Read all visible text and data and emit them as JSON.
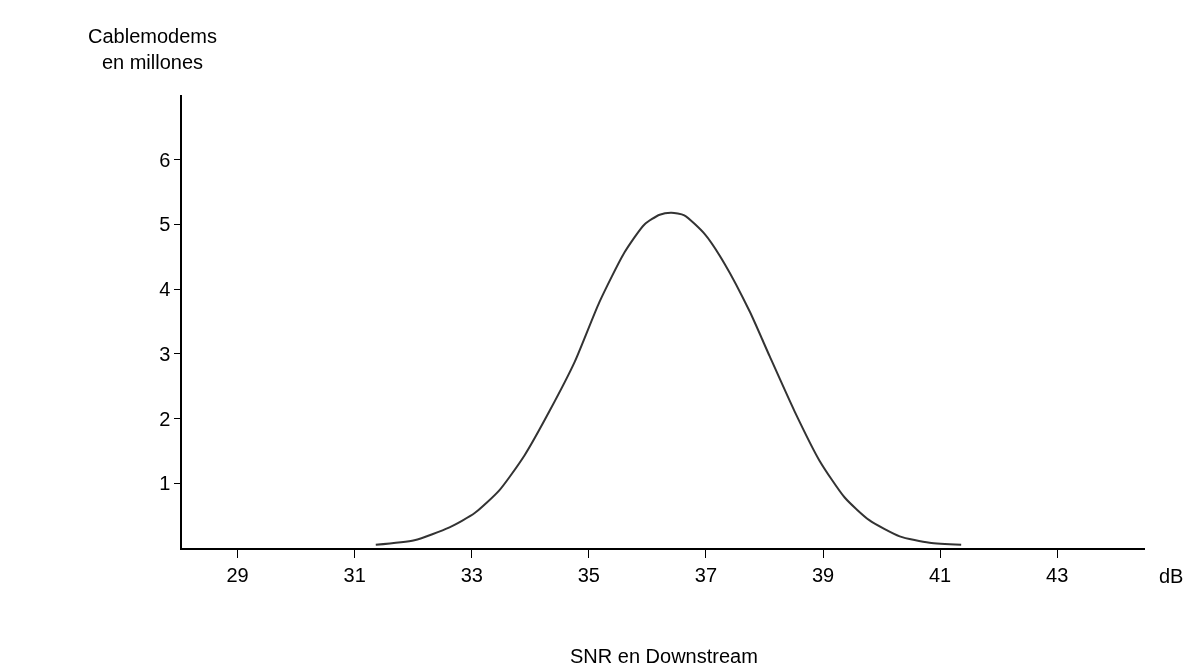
{
  "chart_data": {
    "type": "line",
    "xlabel": "SNR en Downstream",
    "ylabel": "Cablemodems\nen millones",
    "annotations": [
      "dB"
    ],
    "x": [
      31.36,
      32.02,
      32.62,
      33.05,
      33.47,
      33.9,
      34.33,
      34.76,
      35.18,
      35.61,
      35.95,
      36.21,
      36.41,
      36.63,
      36.98,
      37.32,
      37.75,
      38.09,
      38.51,
      38.94,
      39.37,
      39.79,
      40.31,
      40.82,
      41.36
    ],
    "series": [
      {
        "color": "#333333",
        "values": [
          0.05,
          0.12,
          0.32,
          0.54,
          0.89,
          1.43,
          2.12,
          2.88,
          3.8,
          4.57,
          5.0,
          5.15,
          5.18,
          5.14,
          4.85,
          4.39,
          3.65,
          2.96,
          2.12,
          1.35,
          0.78,
          0.43,
          0.18,
          0.08,
          0.05
        ]
      }
    ],
    "xlim": [
      28.05,
      44.5
    ],
    "xticks": [
      29,
      31,
      33,
      35,
      37,
      39,
      41,
      43
    ],
    "ylim": [
      0,
      7
    ],
    "yticks": [
      1,
      2,
      3,
      4,
      5,
      6
    ],
    "marker": "none",
    "line_style": "solid"
  }
}
